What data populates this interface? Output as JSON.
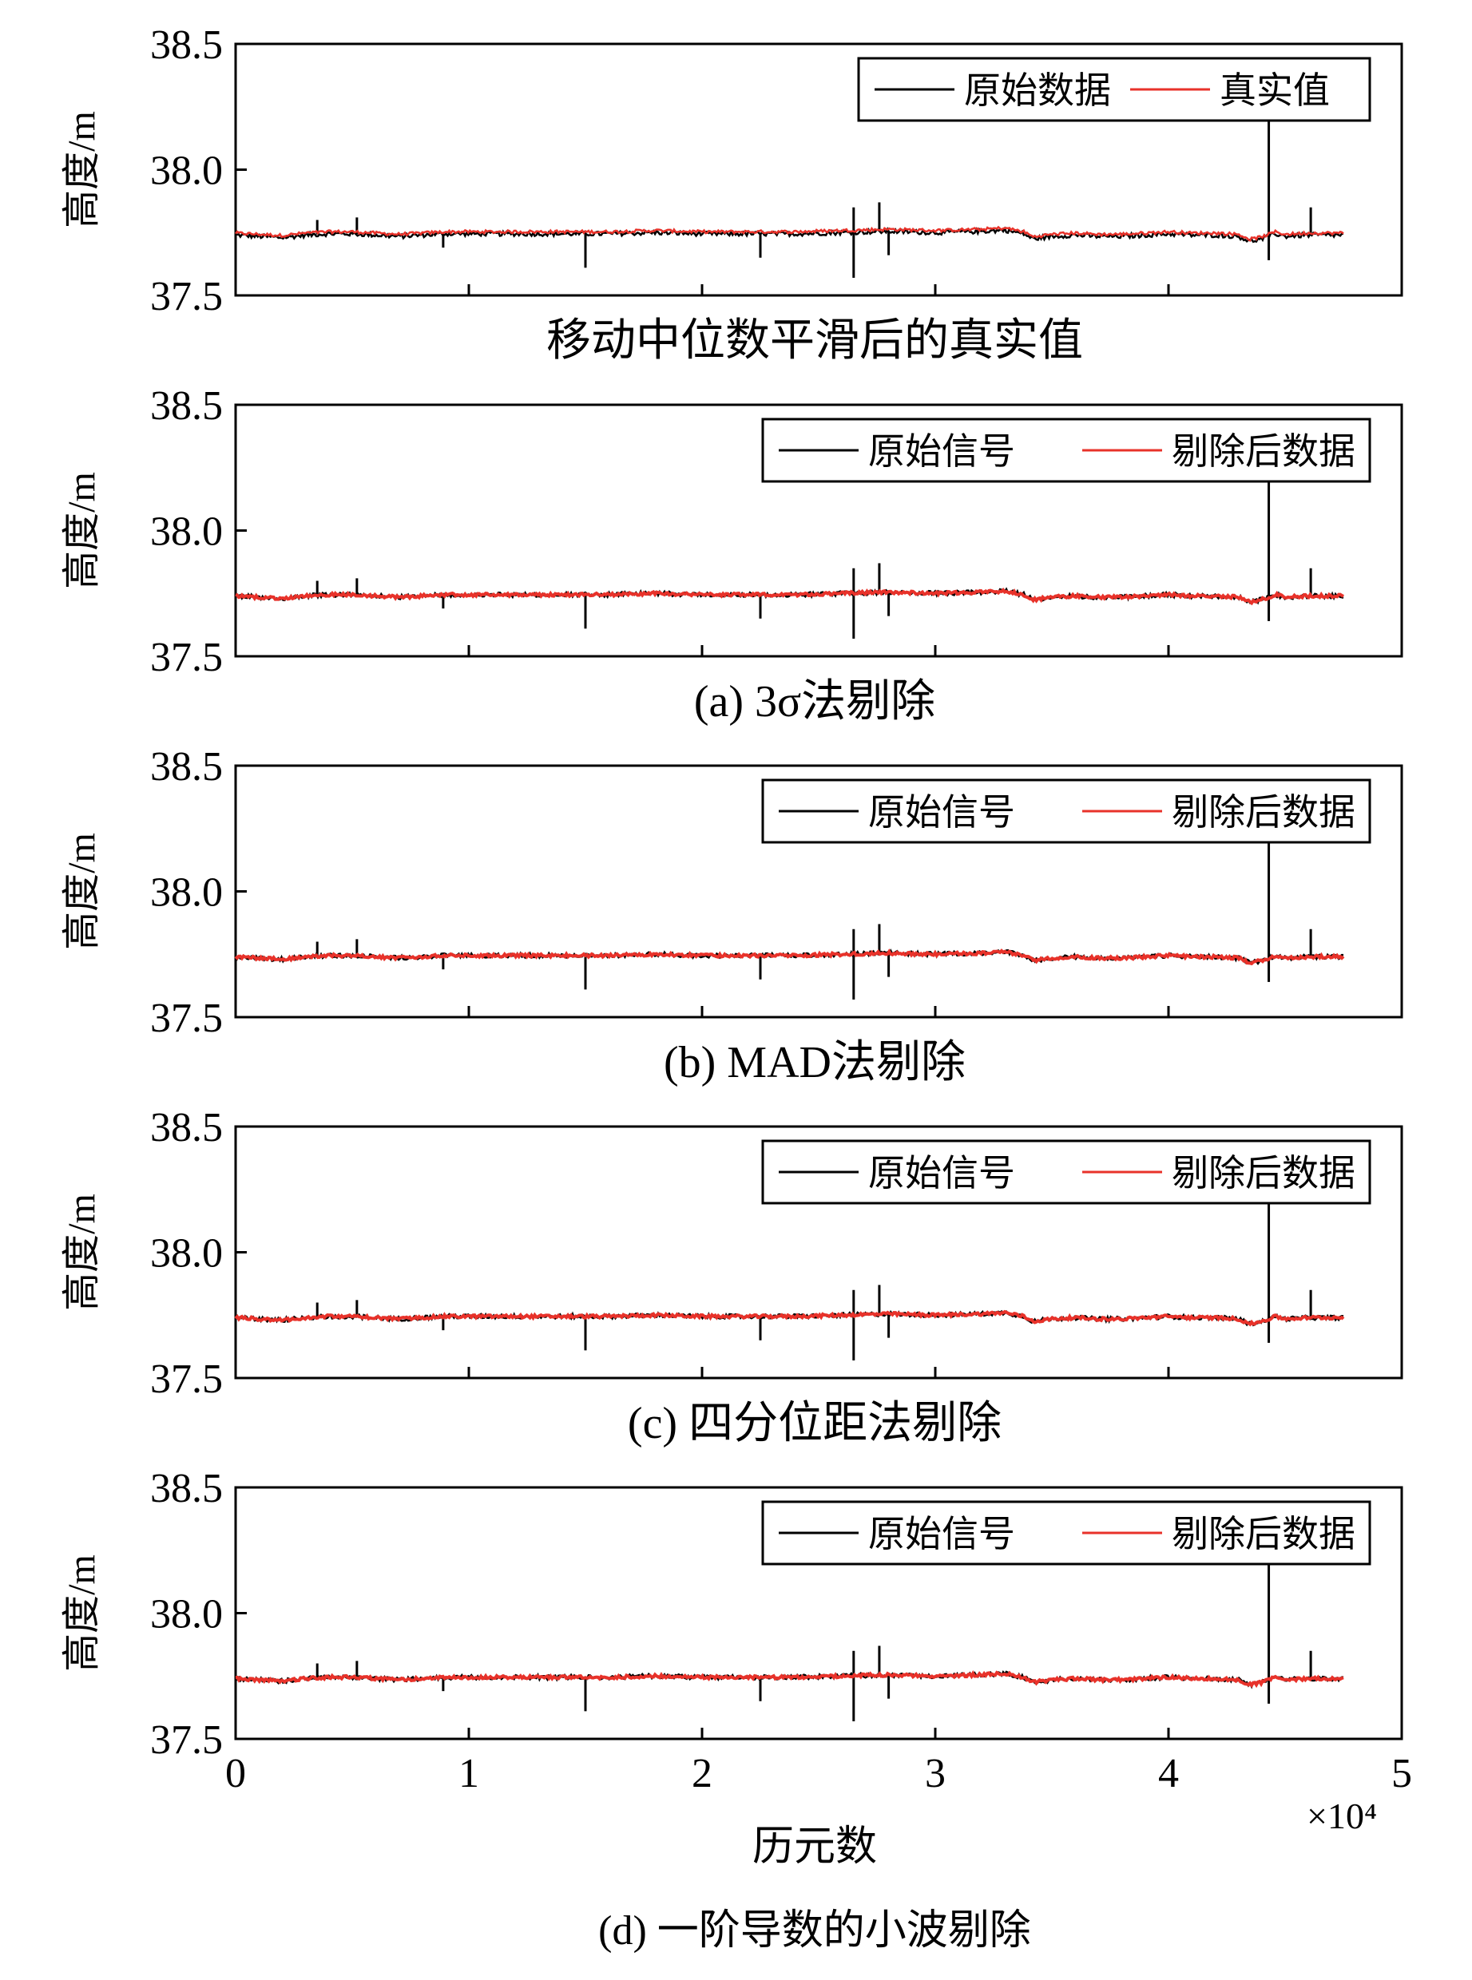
{
  "figure": {
    "xlabel": "历元数",
    "x_exponent": "×10⁴",
    "bottom_caption": "(d) 一阶导数的小波剔除"
  },
  "colors": {
    "raw": "#000000",
    "processed": "#e8322a",
    "axis": "#000000"
  },
  "chart_data": [
    {
      "type": "line",
      "title": "",
      "caption": "移动中位数平滑后的真实值",
      "ylabel": "高度/m",
      "ylim": [
        37.5,
        38.5
      ],
      "xlim": [
        0,
        50000
      ],
      "yticks": [
        "37.5",
        "38.0",
        "38.5"
      ],
      "show_xticklabels": false,
      "legend": {
        "position": "top-right",
        "entries": [
          "原始数据",
          "真实值"
        ]
      },
      "series": [
        {
          "name": "原始数据",
          "color": "#000000"
        },
        {
          "name": "真实值",
          "color": "#e8322a"
        }
      ]
    },
    {
      "type": "line",
      "title": "",
      "caption": "(a) 3σ法剔除",
      "ylabel": "高度/m",
      "ylim": [
        37.5,
        38.5
      ],
      "xlim": [
        0,
        50000
      ],
      "yticks": [
        "37.5",
        "38.0",
        "38.5"
      ],
      "show_xticklabels": false,
      "legend": {
        "position": "top-right",
        "entries": [
          "原始信号",
          "剔除后数据"
        ]
      },
      "series": [
        {
          "name": "原始信号",
          "color": "#000000"
        },
        {
          "name": "剔除后数据",
          "color": "#e8322a"
        }
      ]
    },
    {
      "type": "line",
      "title": "",
      "caption": "(b) MAD法剔除",
      "ylabel": "高度/m",
      "ylim": [
        37.5,
        38.5
      ],
      "xlim": [
        0,
        50000
      ],
      "yticks": [
        "37.5",
        "38.0",
        "38.5"
      ],
      "show_xticklabels": false,
      "legend": {
        "position": "top-right",
        "entries": [
          "原始信号",
          "剔除后数据"
        ]
      },
      "series": [
        {
          "name": "原始信号",
          "color": "#000000"
        },
        {
          "name": "剔除后数据",
          "color": "#e8322a"
        }
      ]
    },
    {
      "type": "line",
      "title": "",
      "caption": "(c) 四分位距法剔除",
      "ylabel": "高度/m",
      "ylim": [
        37.5,
        38.5
      ],
      "xlim": [
        0,
        50000
      ],
      "yticks": [
        "37.5",
        "38.0",
        "38.5"
      ],
      "show_xticklabels": false,
      "legend": {
        "position": "top-right",
        "entries": [
          "原始信号",
          "剔除后数据"
        ]
      },
      "series": [
        {
          "name": "原始信号",
          "color": "#000000"
        },
        {
          "name": "剔除后数据",
          "color": "#e8322a"
        }
      ]
    },
    {
      "type": "line",
      "title": "",
      "caption": "",
      "ylabel": "高度/m",
      "ylim": [
        37.5,
        38.5
      ],
      "xlim": [
        0,
        50000
      ],
      "yticks": [
        "37.5",
        "38.0",
        "38.5"
      ],
      "xticks": [
        "0",
        "1",
        "2",
        "3",
        "4",
        "5"
      ],
      "show_xticklabels": true,
      "legend": {
        "position": "top-right",
        "entries": [
          "原始信号",
          "剔除后数据"
        ]
      },
      "series": [
        {
          "name": "原始信号",
          "color": "#000000"
        },
        {
          "name": "剔除后数据",
          "color": "#e8322a"
        }
      ]
    }
  ],
  "signal": {
    "points": [
      [
        0,
        37.74
      ],
      [
        1000,
        37.735
      ],
      [
        2000,
        37.73
      ],
      [
        3000,
        37.74
      ],
      [
        4000,
        37.745
      ],
      [
        5000,
        37.745
      ],
      [
        6000,
        37.74
      ],
      [
        7000,
        37.735
      ],
      [
        8000,
        37.74
      ],
      [
        9000,
        37.745
      ],
      [
        10000,
        37.745
      ],
      [
        12000,
        37.745
      ],
      [
        14000,
        37.745
      ],
      [
        16000,
        37.745
      ],
      [
        18000,
        37.75
      ],
      [
        20000,
        37.745
      ],
      [
        22000,
        37.745
      ],
      [
        24000,
        37.745
      ],
      [
        26000,
        37.75
      ],
      [
        28000,
        37.755
      ],
      [
        30000,
        37.75
      ],
      [
        32000,
        37.755
      ],
      [
        33000,
        37.76
      ],
      [
        33800,
        37.745
      ],
      [
        34200,
        37.725
      ],
      [
        35000,
        37.735
      ],
      [
        36000,
        37.74
      ],
      [
        37000,
        37.735
      ],
      [
        38000,
        37.735
      ],
      [
        39000,
        37.74
      ],
      [
        40000,
        37.745
      ],
      [
        41000,
        37.74
      ],
      [
        42000,
        37.74
      ],
      [
        43000,
        37.735
      ],
      [
        43500,
        37.715
      ],
      [
        44000,
        37.725
      ],
      [
        44600,
        37.745
      ],
      [
        45000,
        37.735
      ],
      [
        46000,
        37.74
      ],
      [
        47500,
        37.74
      ]
    ],
    "spikes": [
      [
        3500,
        37.8
      ],
      [
        5200,
        37.81
      ],
      [
        8900,
        37.69
      ],
      [
        15000,
        37.61
      ],
      [
        22500,
        37.65
      ],
      [
        26500,
        37.57
      ],
      [
        26500,
        37.85
      ],
      [
        27600,
        37.87
      ],
      [
        28000,
        37.66
      ],
      [
        44300,
        38.28
      ],
      [
        44300,
        37.64
      ],
      [
        46100,
        37.85
      ]
    ]
  }
}
